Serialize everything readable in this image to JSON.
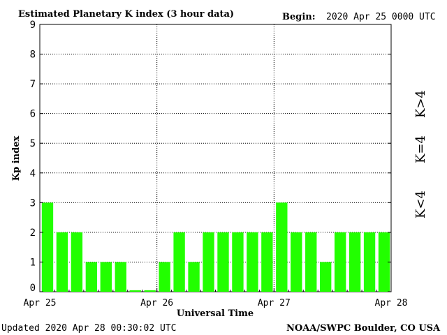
{
  "chart_data": {
    "type": "bar",
    "title": "Estimated Planetary K index (3 hour data)",
    "begin_label": "Begin:",
    "begin_value": "2020 Apr 25 0000 UTC",
    "xlabel": "Universal Time",
    "ylabel": "Kp index",
    "ylim": [
      0,
      9
    ],
    "y_ticks": [
      "0",
      "1",
      "2",
      "3",
      "4",
      "5",
      "6",
      "7",
      "8",
      "9"
    ],
    "x_tick_labels": [
      "Apr 25",
      "Apr 26",
      "Apr 27",
      "Apr 28"
    ],
    "values": [
      3,
      2,
      2,
      1,
      1,
      1,
      0.05,
      0.05,
      1,
      2,
      1,
      2,
      2,
      2,
      2,
      2,
      3,
      2,
      2,
      1,
      2,
      2,
      2,
      2
    ],
    "bar_color": "#22ff00",
    "legend": [
      {
        "label": "K<4",
        "color": "#33ee00"
      },
      {
        "label": "K=4",
        "color": "#ffcc00"
      },
      {
        "label": "K>4",
        "color": "#ff2200"
      }
    ],
    "grid": "dotted, at each day and each integer Kp"
  },
  "footer": {
    "updated": "Updated 2020 Apr 28 00:30:02 UTC",
    "credit": "NOAA/SWPC Boulder, CO USA"
  }
}
